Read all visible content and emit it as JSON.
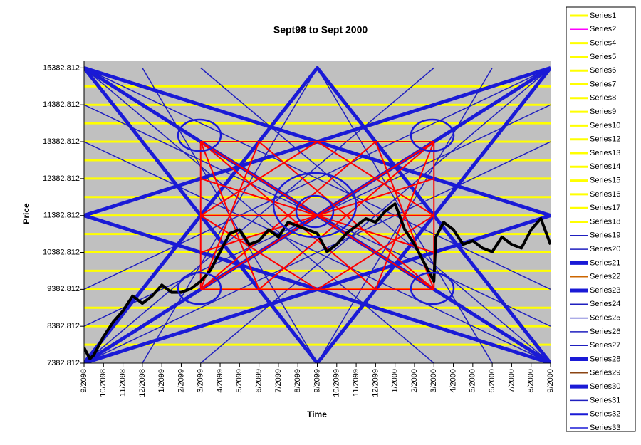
{
  "chart_data": {
    "type": "line",
    "title": "Sept98 to Sept 2000",
    "x_label": "Time",
    "y_label": "Price",
    "xlim": [
      0,
      24
    ],
    "ylim": [
      7382.812,
      15582.812
    ],
    "xticks": [
      {
        "value": 0,
        "label": "9/2098"
      },
      {
        "value": 1,
        "label": "10/2098"
      },
      {
        "value": 2,
        "label": "11/2098"
      },
      {
        "value": 3,
        "label": "12/2098"
      },
      {
        "value": 4,
        "label": "1/2099"
      },
      {
        "value": 5,
        "label": "2/2099"
      },
      {
        "value": 6,
        "label": "3/2099"
      },
      {
        "value": 7,
        "label": "4/2099"
      },
      {
        "value": 8,
        "label": "5/2099"
      },
      {
        "value": 9,
        "label": "6/2099"
      },
      {
        "value": 10,
        "label": "7/2099"
      },
      {
        "value": 11,
        "label": "8/2099"
      },
      {
        "value": 12,
        "label": "9/2099"
      },
      {
        "value": 13,
        "label": "10/2099"
      },
      {
        "value": 14,
        "label": "11/2099"
      },
      {
        "value": 15,
        "label": "12/2099"
      },
      {
        "value": 16,
        "label": "1/2000"
      },
      {
        "value": 17,
        "label": "2/2000"
      },
      {
        "value": 18,
        "label": "3/2000"
      },
      {
        "value": 19,
        "label": "4/2000"
      },
      {
        "value": 20,
        "label": "5/2000"
      },
      {
        "value": 21,
        "label": "6/2000"
      },
      {
        "value": 22,
        "label": "7/2000"
      },
      {
        "value": 23,
        "label": "8/2000"
      },
      {
        "value": 24,
        "label": "9/2000"
      }
    ],
    "yticks": [
      7382.812,
      8382.812,
      9382.812,
      10382.812,
      11382.812,
      12382.812,
      13382.812,
      14382.812,
      15382.812
    ],
    "series": [
      {
        "name": "Series1",
        "color": "#ffff00",
        "width": 3,
        "x": [
          0,
          24
        ],
        "values": [
          7882.812,
          7882.812
        ]
      },
      {
        "name": "Series2",
        "color": "#ff00ff",
        "width": 1.5,
        "x": [],
        "values": []
      },
      {
        "name": "Series4",
        "color": "#ffff00",
        "width": 3,
        "x": [
          0,
          24
        ],
        "values": [
          8382.812,
          8382.812
        ]
      },
      {
        "name": "Series5",
        "color": "#ffff00",
        "width": 3,
        "x": [
          0,
          24
        ],
        "values": [
          8882.812,
          8882.812
        ]
      },
      {
        "name": "Series6",
        "color": "#ffff00",
        "width": 3,
        "x": [
          0,
          24
        ],
        "values": [
          9382.812,
          9382.812
        ]
      },
      {
        "name": "Series7",
        "color": "#ffff00",
        "width": 3,
        "x": [
          0,
          24
        ],
        "values": [
          9882.812,
          9882.812
        ]
      },
      {
        "name": "Series8",
        "color": "#ffff00",
        "width": 3,
        "x": [
          0,
          24
        ],
        "values": [
          10382.812,
          10382.812
        ]
      },
      {
        "name": "Series9",
        "color": "#ffff00",
        "width": 3,
        "x": [
          0,
          24
        ],
        "values": [
          10882.812,
          10882.812
        ]
      },
      {
        "name": "Series10",
        "color": "#ffff00",
        "width": 3,
        "x": [
          0,
          24
        ],
        "values": [
          11382.812,
          11382.812
        ]
      },
      {
        "name": "Series12",
        "color": "#ffff00",
        "width": 3,
        "x": [
          0,
          24
        ],
        "values": [
          11882.812,
          11882.812
        ]
      },
      {
        "name": "Series13",
        "color": "#ffff00",
        "width": 3,
        "x": [
          0,
          24
        ],
        "values": [
          12382.812,
          12382.812
        ]
      },
      {
        "name": "Series14",
        "color": "#ffff00",
        "width": 3,
        "x": [
          0,
          24
        ],
        "values": [
          12882.812,
          12882.812
        ]
      },
      {
        "name": "Series15",
        "color": "#ffff00",
        "width": 3,
        "x": [
          0,
          24
        ],
        "values": [
          13382.812,
          13382.812
        ]
      },
      {
        "name": "Series16",
        "color": "#ffff00",
        "width": 3,
        "x": [
          0,
          24
        ],
        "values": [
          13882.812,
          13882.812
        ]
      },
      {
        "name": "Series17",
        "color": "#ffff00",
        "width": 3,
        "x": [
          0,
          24
        ],
        "values": [
          14382.812,
          14382.812
        ]
      },
      {
        "name": "Series18",
        "color": "#ffff00",
        "width": 3,
        "x": [
          0,
          24
        ],
        "values": [
          14882.812,
          14882.812
        ]
      },
      {
        "name": "Series19",
        "color": "#1f1fbf",
        "width": 1.5,
        "x": [
          0,
          24,
          null,
          0,
          24
        ],
        "values": [
          7382.812,
          13382.812,
          null,
          15382.812,
          9382.812
        ]
      },
      {
        "name": "Series20",
        "color": "#1f1fbf",
        "width": 1.5,
        "x": [
          0,
          24,
          null,
          0,
          24
        ],
        "values": [
          9382.812,
          15382.812,
          null,
          13382.812,
          7382.812
        ]
      },
      {
        "name": "Series21",
        "color": "#1a1ad6",
        "width": 5,
        "x": [
          0,
          24,
          null,
          0,
          24
        ],
        "values": [
          7382.812,
          15382.812,
          null,
          15382.812,
          7382.812
        ]
      },
      {
        "name": "Series22",
        "color": "#cc6600",
        "width": 1.5,
        "x": [],
        "values": []
      },
      {
        "name": "Series23",
        "color": "#1a1ad6",
        "width": 5,
        "x": [
          0,
          24,
          null,
          0,
          24
        ],
        "values": [
          11382.812,
          15382.812,
          null,
          11382.812,
          7382.812
        ]
      },
      {
        "name": "Series24",
        "color": "#1f1fbf",
        "width": 1.5,
        "x": [
          0,
          18,
          null,
          6,
          24
        ],
        "values": [
          7382.812,
          15382.812,
          null,
          15382.812,
          7382.812
        ]
      },
      {
        "name": "Series25",
        "color": "#1f1fbf",
        "width": 1.5,
        "x": [
          0,
          18,
          null,
          6,
          24
        ],
        "values": [
          15382.812,
          7382.812,
          null,
          7382.812,
          15382.812
        ]
      },
      {
        "name": "Series26",
        "color": "#1f1fbf",
        "width": 1.5,
        "x": [
          3,
          12,
          21
        ],
        "values": [
          7382.812,
          15382.812,
          7382.812
        ]
      },
      {
        "name": "Series27",
        "color": "#1f1fbf",
        "width": 1.5,
        "x": [
          3,
          12,
          21
        ],
        "values": [
          15382.812,
          7382.812,
          15382.812
        ]
      },
      {
        "name": "Series28",
        "color": "#1a1ad6",
        "width": 5,
        "x": [
          0,
          24,
          null,
          0,
          24
        ],
        "values": [
          15382.812,
          11382.812,
          null,
          7382.812,
          11382.812
        ]
      },
      {
        "name": "Series29",
        "color": "#8b4513",
        "width": 1.5,
        "x": [],
        "values": []
      },
      {
        "name": "Series30",
        "color": "#1a1ad6",
        "width": 5,
        "x": [
          0,
          12,
          24,
          null,
          0,
          12,
          24
        ],
        "values": [
          15382.812,
          7382.812,
          15382.812,
          null,
          7382.812,
          15382.812,
          7382.812
        ]
      },
      {
        "name": "Series31",
        "color": "#1f1fbf",
        "width": 1.5,
        "x": [
          0,
          24,
          null,
          0,
          24
        ],
        "values": [
          8382.812,
          14382.812,
          null,
          14382.812,
          8382.812
        ]
      },
      {
        "name": "Series32",
        "color": "#1a1ad6",
        "width": 3,
        "x": [
          0,
          6,
          null,
          0,
          6,
          null,
          24,
          18,
          null,
          24,
          18
        ],
        "values": [
          7382.812,
          9382.812,
          null,
          15382.812,
          13382.812,
          null,
          15382.812,
          13382.812,
          null,
          7382.812,
          9382.812
        ]
      },
      {
        "name": "Series33",
        "color": "#1a1ad6",
        "width": 1.5,
        "x": [],
        "values": []
      },
      {
        "color": "#ff0000",
        "width": 2,
        "x": [
          6,
          6,
          18,
          18,
          6,
          null,
          12,
          6,
          12,
          18,
          12,
          null,
          6,
          18,
          null,
          6,
          18,
          null,
          6,
          9,
          null,
          6,
          15,
          null,
          18,
          9,
          null,
          18,
          15,
          null,
          6,
          9,
          null,
          6,
          15,
          null,
          18,
          9,
          null,
          18,
          15,
          null,
          6,
          18,
          null,
          6,
          18,
          null,
          6,
          18
        ],
        "values": [
          9382.812,
          13382.812,
          13382.812,
          9382.812,
          9382.812,
          null,
          13382.812,
          11382.812,
          9382.812,
          11382.812,
          13382.812,
          null,
          9382.812,
          13382.812,
          null,
          13382.812,
          9382.812,
          null,
          9382.812,
          13382.812,
          null,
          9382.812,
          13382.812,
          null,
          9382.812,
          13382.812,
          null,
          9382.812,
          13382.812,
          null,
          13382.812,
          9382.812,
          null,
          13382.812,
          9382.812,
          null,
          13382.812,
          9382.812,
          null,
          13382.812,
          9382.812,
          null,
          11382.812,
          11382.812,
          null,
          10382.812,
          12382.812,
          null,
          12382.812,
          10382.812
        ]
      },
      {
        "color": "#000000",
        "width": 4,
        "x": [
          0,
          0.3,
          0.5,
          1,
          1.5,
          2,
          2.5,
          3,
          3.5,
          4,
          4.5,
          5,
          5.5,
          6,
          6.5,
          7,
          7.5,
          8,
          8.5,
          9,
          9.5,
          10,
          10.5,
          11,
          11.5,
          12,
          12.5,
          13,
          13.5,
          14,
          14.5,
          15,
          15.5,
          16,
          16.5,
          17,
          17.5,
          18,
          18.1,
          18.5,
          19,
          19.5,
          20,
          20.5,
          21,
          21.5,
          22,
          22.5,
          23,
          23.5,
          24
        ],
        "values": [
          7800,
          7500,
          7600,
          8100,
          8500,
          8800,
          9200,
          9000,
          9200,
          9500,
          9300,
          9300,
          9400,
          9600,
          9900,
          10400,
          10900,
          11000,
          10600,
          10700,
          11000,
          10800,
          11200,
          11100,
          11000,
          10900,
          10400,
          10600,
          10900,
          11100,
          11300,
          11200,
          11500,
          11700,
          11000,
          10600,
          10100,
          9600,
          10800,
          11200,
          11000,
          10600,
          10700,
          10500,
          10400,
          10800,
          10600,
          10500,
          11000,
          11300,
          10600
        ]
      }
    ]
  }
}
